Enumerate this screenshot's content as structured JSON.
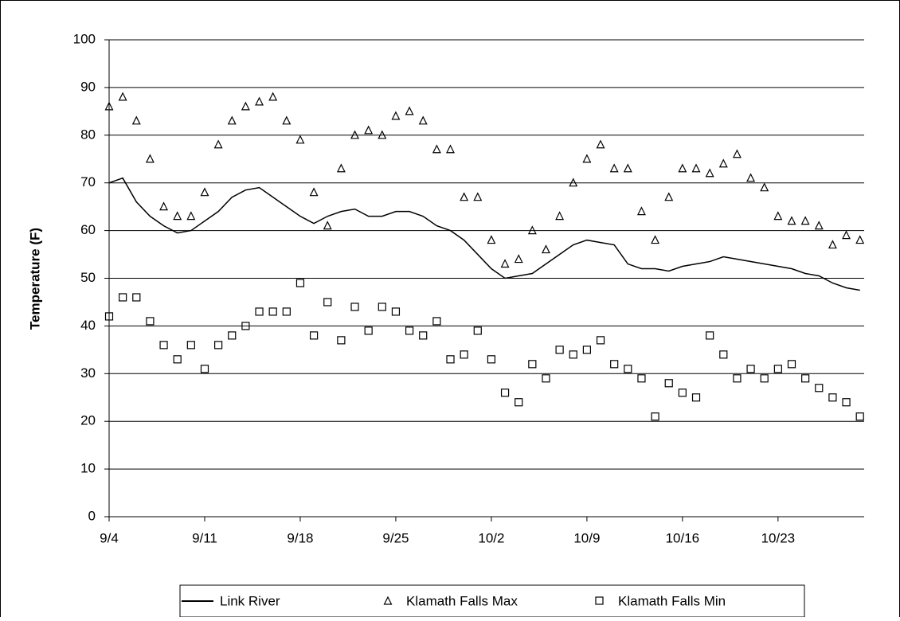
{
  "chart_data": {
    "type": "line",
    "ylabel": "Temperature (F)",
    "categories": [
      "9/4",
      null,
      null,
      null,
      null,
      null,
      null,
      "9/11",
      null,
      null,
      null,
      null,
      null,
      null,
      "9/18",
      null,
      null,
      null,
      null,
      null,
      null,
      "9/25",
      null,
      null,
      null,
      null,
      null,
      null,
      "10/2",
      null,
      null,
      null,
      null,
      null,
      null,
      "10/9",
      null,
      null,
      null,
      null,
      null,
      null,
      "10/16",
      null,
      null,
      null,
      null,
      null,
      null,
      "10/23",
      null,
      null,
      null,
      null,
      null,
      null
    ],
    "ylim": [
      0,
      100
    ],
    "yticks": [
      0,
      10,
      20,
      30,
      40,
      50,
      60,
      70,
      80,
      90,
      100
    ],
    "grid": true,
    "legend": "bottom",
    "series": [
      {
        "name": "Link River",
        "color": "#000000",
        "marker": "none",
        "values": [
          70,
          71,
          66,
          63,
          61,
          59.5,
          60,
          62,
          64,
          67,
          68.5,
          69,
          67,
          65,
          63,
          61.5,
          63,
          64,
          64.5,
          63,
          63,
          64,
          64,
          63,
          61,
          60,
          58,
          55,
          52,
          50,
          50.5,
          51,
          53,
          55,
          57,
          58,
          57.5,
          57,
          53,
          52,
          52,
          51.5,
          52.5,
          53,
          53.5,
          54.5,
          54,
          53.5,
          53,
          52.5,
          52,
          51,
          50.5,
          49,
          48,
          47.5
        ]
      },
      {
        "name": "Klamath Falls Max",
        "color": "#000000",
        "marker": "triangle",
        "values": [
          86,
          88,
          83,
          75,
          65,
          63,
          63,
          68,
          78,
          83,
          86,
          87,
          88,
          83,
          79,
          68,
          61,
          73,
          80,
          81,
          80,
          84,
          85,
          83,
          77,
          77,
          67,
          67,
          58,
          53,
          54,
          60,
          56,
          63,
          70,
          75,
          78,
          73,
          73,
          64,
          58,
          67,
          73,
          73,
          72,
          74,
          76,
          71,
          69,
          63,
          62,
          62,
          61,
          57,
          59,
          58
        ]
      },
      {
        "name": "Klamath Falls Min",
        "color": "#000000",
        "marker": "square",
        "values": [
          42,
          46,
          46,
          41,
          36,
          33,
          36,
          31,
          36,
          38,
          40,
          43,
          43,
          43,
          49,
          38,
          45,
          37,
          44,
          39,
          44,
          43,
          39,
          38,
          41,
          33,
          34,
          39,
          33,
          26,
          24,
          32,
          29,
          35,
          34,
          35,
          37,
          32,
          31,
          29,
          21,
          28,
          26,
          25,
          38,
          34,
          29,
          31,
          29,
          31,
          32,
          29,
          27,
          25,
          24,
          21
        ]
      }
    ]
  }
}
